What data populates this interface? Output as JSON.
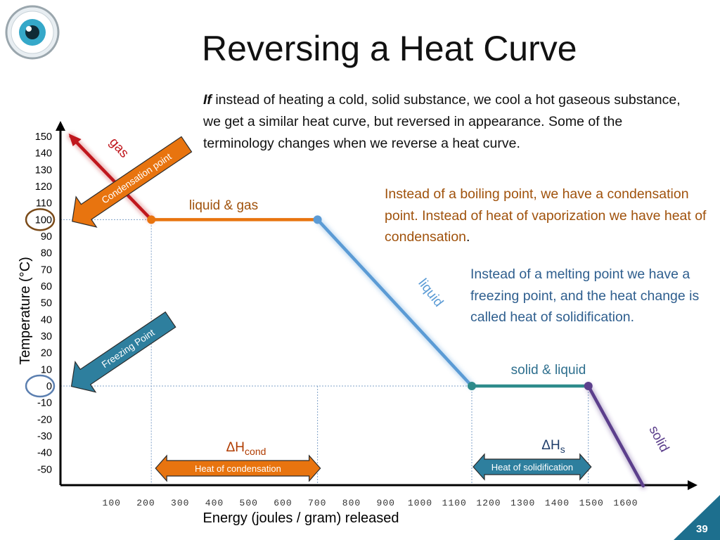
{
  "slide": {
    "title": "Reversing a Heat Curve",
    "intro_lead": "If",
    "intro_rest": " instead of heating a cold, solid substance, we cool a hot gaseous substance, we get a similar heat curve, but reversed in appearance.  Some of the terminology changes when we reverse a heat curve.",
    "note_condensation": "Instead of a boiling point, we have a condensation point.  Instead of heat of vaporization we have heat of condensation",
    "note_condensation_end": ".",
    "note_freezing": "Instead of a melting point we have a freezing point, and the heat change is called heat of solidification.",
    "page_number": "39",
    "logo_icon": "eye-icon"
  },
  "chart_data": {
    "type": "line",
    "xlabel": "Energy (joules / gram) released",
    "ylabel": "Temperature (°C)",
    "xlim": [
      0,
      1750
    ],
    "ylim": [
      -50,
      150
    ],
    "x_ticks": [
      100,
      200,
      300,
      400,
      500,
      600,
      700,
      800,
      900,
      1000,
      1100,
      1200,
      1300,
      1400,
      1500,
      1600
    ],
    "y_ticks": [
      150,
      140,
      130,
      120,
      110,
      100,
      90,
      80,
      70,
      60,
      50,
      40,
      30,
      20,
      10,
      0,
      -10,
      -20,
      -30,
      -40,
      -50
    ],
    "series": [
      {
        "name": "gas",
        "color": "#c0171d",
        "points": [
          [
            30,
            150
          ],
          [
            265,
            100
          ]
        ]
      },
      {
        "name": "liquid & gas",
        "color": "#e8740f",
        "points": [
          [
            265,
            100
          ],
          [
            750,
            100
          ]
        ]
      },
      {
        "name": "liquid",
        "color": "#5b9bd5",
        "points": [
          [
            750,
            100
          ],
          [
            1200,
            0
          ]
        ]
      },
      {
        "name": "solid & liquid",
        "color": "#2e8b8b",
        "points": [
          [
            1200,
            0
          ],
          [
            1540,
            0
          ]
        ]
      },
      {
        "name": "solid",
        "color": "#5c3f8c",
        "points": [
          [
            1540,
            0
          ],
          [
            1700,
            -60
          ]
        ]
      }
    ],
    "guides": {
      "vertical_x": [
        265,
        750,
        1200,
        1540
      ],
      "horizontal_y": [
        100,
        0
      ]
    },
    "highlighted_ticks": [
      {
        "value": 100,
        "color": "#7a4a18"
      },
      {
        "value": 0,
        "color": "#5b7fb0"
      }
    ],
    "point_arrows": [
      {
        "label": "Condensation point",
        "color": "#e8740f",
        "target_y": 100
      },
      {
        "label": "Freezing Point",
        "color": "#2e7f9e",
        "target_y": 0
      }
    ],
    "span_arrows": [
      {
        "symbol": "ΔH",
        "subscript": "cond",
        "label": "Heat of condensation",
        "color": "#e8740f",
        "symbol_color": "#b03c00",
        "from_x": 265,
        "to_x": 750
      },
      {
        "symbol": "ΔH",
        "subscript": "s",
        "label": "Heat of solidification",
        "color": "#2e7f9e",
        "symbol_color": "#1f3e6b",
        "from_x": 1200,
        "to_x": 1540
      }
    ]
  }
}
